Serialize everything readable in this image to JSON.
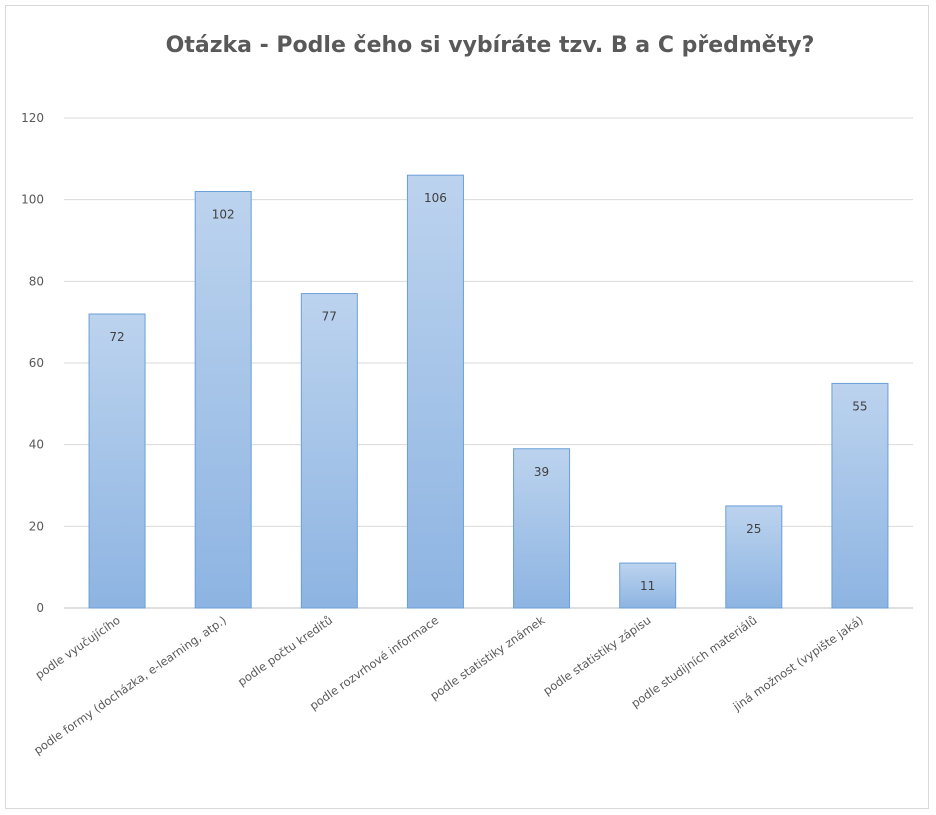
{
  "chart_data": {
    "type": "bar",
    "title": "Otázka - Podle čeho si vybíráte tzv. B a C předměty?",
    "xlabel": "",
    "ylabel": "",
    "ylim": [
      0,
      120
    ],
    "yticks": [
      0,
      20,
      40,
      60,
      80,
      100,
      120
    ],
    "grid": true,
    "legend": "none",
    "categories": [
      "podle vyučujícího",
      "podle formy (docházka, e-learning, atp.)",
      "podle počtu kreditů",
      "podle rozvrhové informace",
      "podle statistiky známek",
      "podle statistiky zápisu",
      "podle studijních materiálů",
      "jiná možnost (vypište jaká)"
    ],
    "values": [
      72,
      102,
      77,
      106,
      39,
      11,
      25,
      55
    ],
    "colors": {
      "bar_top": "#bcd3ee",
      "bar_bottom": "#8db4e2",
      "bar_border": "#6a9fd8",
      "grid": "#d9d9d9",
      "text": "#595959"
    }
  }
}
